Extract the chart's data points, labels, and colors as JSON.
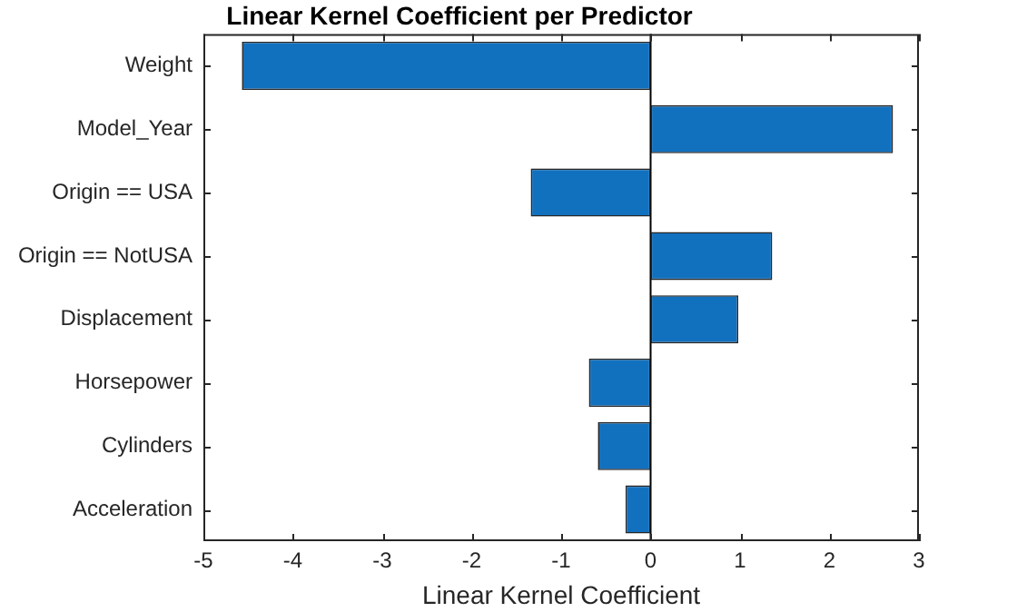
{
  "chart_data": {
    "type": "bar",
    "orientation": "horizontal",
    "title": "Linear Kernel Coefficient per Predictor",
    "xlabel": "Linear Kernel Coefficient",
    "categories": [
      "Weight",
      "Model_Year",
      "Origin == USA",
      "Origin == NotUSA",
      "Displacement",
      "Horsepower",
      "Cylinders",
      "Acceleration"
    ],
    "values": [
      -4.57,
      2.71,
      -1.34,
      1.36,
      0.98,
      -0.69,
      -0.59,
      -0.28
    ],
    "color": "#1271bf",
    "xlim": [
      -5,
      3
    ],
    "xticks": [
      -5,
      -4,
      -3,
      -2,
      -1,
      0,
      1,
      2,
      3
    ],
    "grid": false,
    "ref_lines": [
      {
        "axis": "x",
        "value": 0,
        "color": "#000000"
      }
    ],
    "legend": false
  }
}
